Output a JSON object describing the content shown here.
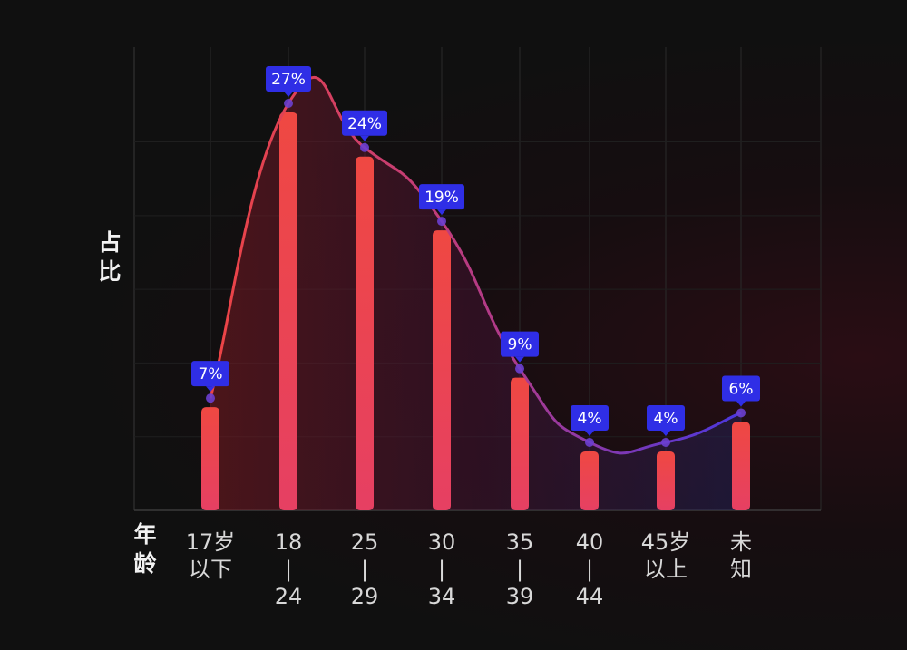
{
  "chart_data": {
    "type": "bar",
    "ylabel": "占比",
    "xlabel": "年龄",
    "categories": [
      [
        "17岁",
        "以下"
      ],
      [
        "18",
        "|",
        "24"
      ],
      [
        "25",
        "|",
        "29"
      ],
      [
        "30",
        "|",
        "34"
      ],
      [
        "35",
        "|",
        "39"
      ],
      [
        "40",
        "|",
        "44"
      ],
      [
        "45岁",
        "以上"
      ],
      [
        "未",
        "知"
      ]
    ],
    "values": [
      7,
      27,
      24,
      19,
      9,
      4,
      4,
      6
    ],
    "value_labels": [
      "7%",
      "27%",
      "24%",
      "19%",
      "9%",
      "4%",
      "4%",
      "6%"
    ],
    "ylim": [
      0,
      30
    ],
    "grid": true,
    "smooth_line_overlay": true,
    "colors": {
      "bar_top": "#ef4842",
      "bar_bottom": "#e64063",
      "label_bg": "#2f2ee6",
      "curve_start": "#ef4444",
      "curve_end": "#4a37e0",
      "grid": "#2a2a2a"
    }
  }
}
